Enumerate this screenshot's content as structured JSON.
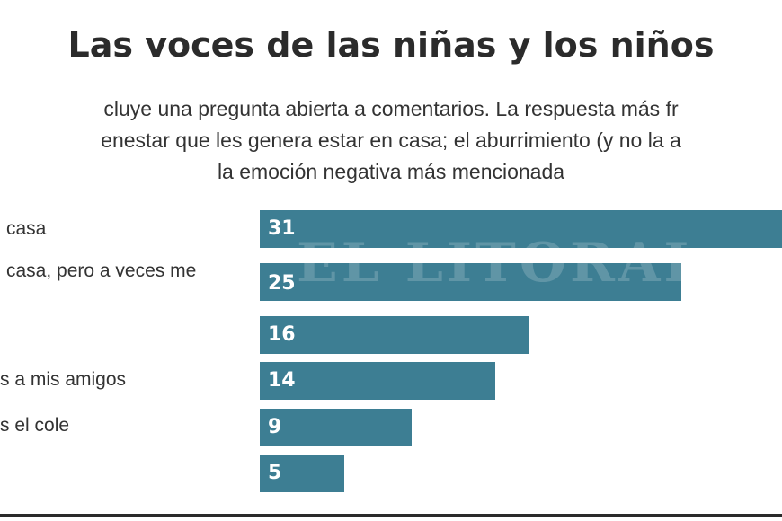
{
  "chart_data": {
    "type": "bar",
    "orientation": "horizontal",
    "title": "Las voces de las niñas y los niños",
    "subtitle_lines": [
      "cluye una pregunta abierta a comentarios. La respuesta más fr",
      "enestar que les genera estar en casa; el aburrimiento (y no la a",
      "la emoción negativa más mencionada"
    ],
    "categories": [
      "casa",
      "casa, pero a veces me",
      "",
      "s a mis amigos",
      "s el cole",
      ""
    ],
    "values": [
      31,
      25,
      16,
      14,
      9,
      5
    ],
    "value_labels": [
      "31",
      "25",
      "16",
      "14",
      "9",
      "5"
    ],
    "xlim": [
      0,
      31
    ],
    "bar_color": "#3d7e93"
  },
  "watermark": "EL LITORAL"
}
